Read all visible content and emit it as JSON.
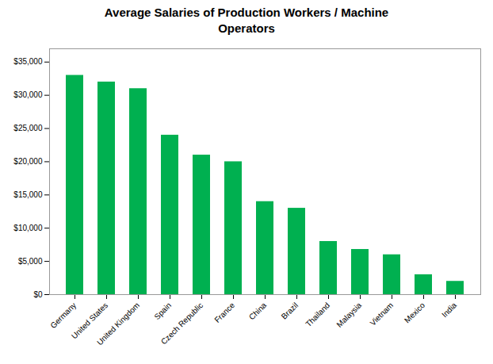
{
  "chart_data": {
    "type": "bar",
    "title": "Average Salaries of Production Workers / Machine\nOperators",
    "categories": [
      "Germany",
      "United States",
      "United Kingdom",
      "Spain",
      "Czech Republic",
      "France",
      "China",
      "Brazil",
      "Thailand",
      "Malaysia",
      "Vietnam",
      "Mexico",
      "India"
    ],
    "values": [
      33000,
      32000,
      31000,
      24000,
      21000,
      20000,
      14000,
      13000,
      8000,
      6800,
      6000,
      3000,
      2000
    ],
    "color": "#00b050",
    "ylim": [
      0,
      37000
    ],
    "yticks": [
      {
        "value": 0,
        "label": "$0"
      },
      {
        "value": 5000,
        "label": "$5,000"
      },
      {
        "value": 10000,
        "label": "$10,000"
      },
      {
        "value": 15000,
        "label": "$15,000"
      },
      {
        "value": 20000,
        "label": "$20,000"
      },
      {
        "value": 25000,
        "label": "$25,000"
      },
      {
        "value": 30000,
        "label": "$30,000"
      },
      {
        "value": 35000,
        "label": "$35,000"
      }
    ],
    "grid": false
  }
}
